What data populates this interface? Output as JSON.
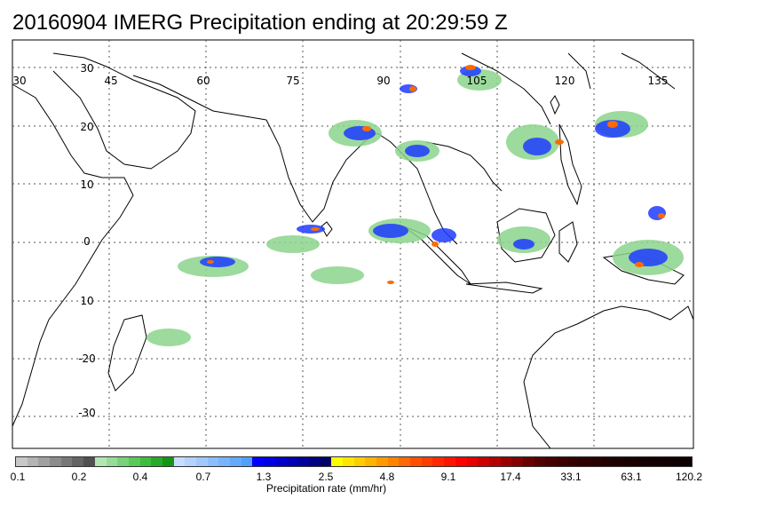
{
  "title": "20160904 IMERG Precipitation ending at 20:29:59 Z",
  "map": {
    "lon_labels": [
      "30",
      "45",
      "60",
      "75",
      "90",
      "105",
      "120",
      "135"
    ],
    "lat_labels": [
      "30",
      "20",
      "10",
      "0",
      "10",
      "-20",
      "-30"
    ],
    "gridlines": "dotted",
    "region": "Indian Ocean / Maritime Continent / Western Pacific"
  },
  "colorbar": {
    "title": "Precipitation rate (mm/hr)",
    "tick_labels": [
      "0.1",
      "0.2",
      "0.4",
      "0.7",
      "1.3",
      "2.5",
      "4.8",
      "9.1",
      "17.4",
      "33.1",
      "63.1",
      "120.2"
    ],
    "colors": [
      "#c8c8c8",
      "#b4b4b4",
      "#a0a0a0",
      "#8c8c8c",
      "#787878",
      "#646464",
      "#505050",
      "#b4e6b4",
      "#96dc96",
      "#78d278",
      "#5ac85a",
      "#3cbe3c",
      "#28aa28",
      "#149614",
      "#c8dcff",
      "#b4d2ff",
      "#a0c8ff",
      "#8cbeff",
      "#78b4ff",
      "#64aaff",
      "#50a0ff",
      "#0000ff",
      "#0000e6",
      "#0000cd",
      "#0000b4",
      "#00009b",
      "#000082",
      "#000069",
      "#ffff00",
      "#ffe600",
      "#ffcd00",
      "#ffb400",
      "#ff9b00",
      "#ff8200",
      "#ff6900",
      "#ff5000",
      "#ff3c00",
      "#ff2800",
      "#ff1400",
      "#ff0000",
      "#e60000",
      "#cd0000",
      "#b40000",
      "#9b0000",
      "#820000",
      "#690000",
      "#550000",
      "#460000",
      "#3c0000",
      "#320000",
      "#2d0000",
      "#280000",
      "#230000",
      "#1e0000",
      "#1a0000",
      "#160000",
      "#140000",
      "#120000",
      "#100000",
      "#0c0000"
    ]
  }
}
